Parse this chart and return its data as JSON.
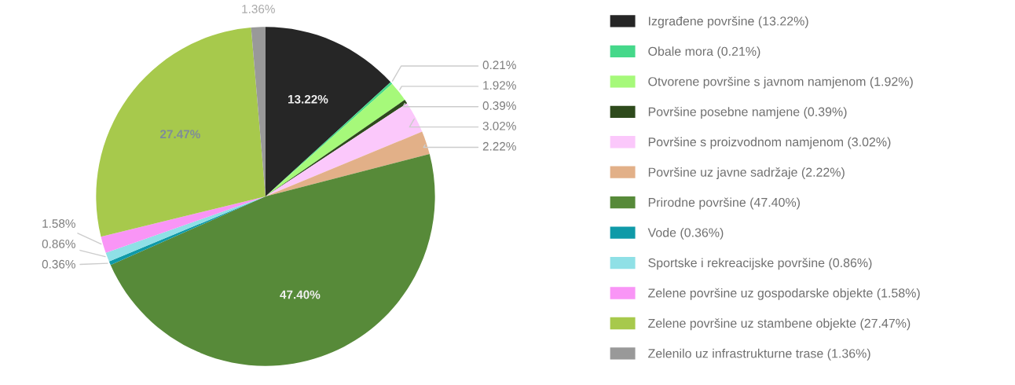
{
  "chart_data": {
    "type": "pie",
    "legend": "right",
    "categories": [
      "Izgrađene površine (13.22%)",
      "Obale mora (0.21%)",
      "Otvorene površine s javnom namjenom (1.92%)",
      "Površine posebne namjene (0.39%)",
      "Površine s proizvodnom namjenom (3.02%)",
      "Površine uz javne sadržaje (2.22%)",
      "Prirodne površine (47.40%)",
      "Vode (0.36%)",
      "Sportske i rekreacijske površine (0.86%)",
      "Zelene površine uz gospodarske objekte (1.58%)",
      "Zelene površine uz stambene objekte (27.47%)",
      "Zelenilo uz infrastrukturne trase (1.36%)"
    ],
    "values": [
      13.22,
      0.21,
      1.92,
      0.39,
      3.02,
      2.22,
      47.4,
      0.36,
      0.86,
      1.58,
      27.47,
      1.36
    ],
    "colors": [
      "#262626",
      "#45d88a",
      "#a6f97a",
      "#2e4a1c",
      "#fbc8fb",
      "#e2b088",
      "#578a39",
      "#0f9aa8",
      "#8fe0e6",
      "#f995f6",
      "#a7c94c",
      "#999999"
    ],
    "value_labels": [
      "13.22%",
      "0.21%",
      "1.92%",
      "0.39%",
      "3.02%",
      "2.22%",
      "47.40%",
      "0.36%",
      "0.86%",
      "1.58%",
      "27.47%",
      "1.36%"
    ]
  }
}
